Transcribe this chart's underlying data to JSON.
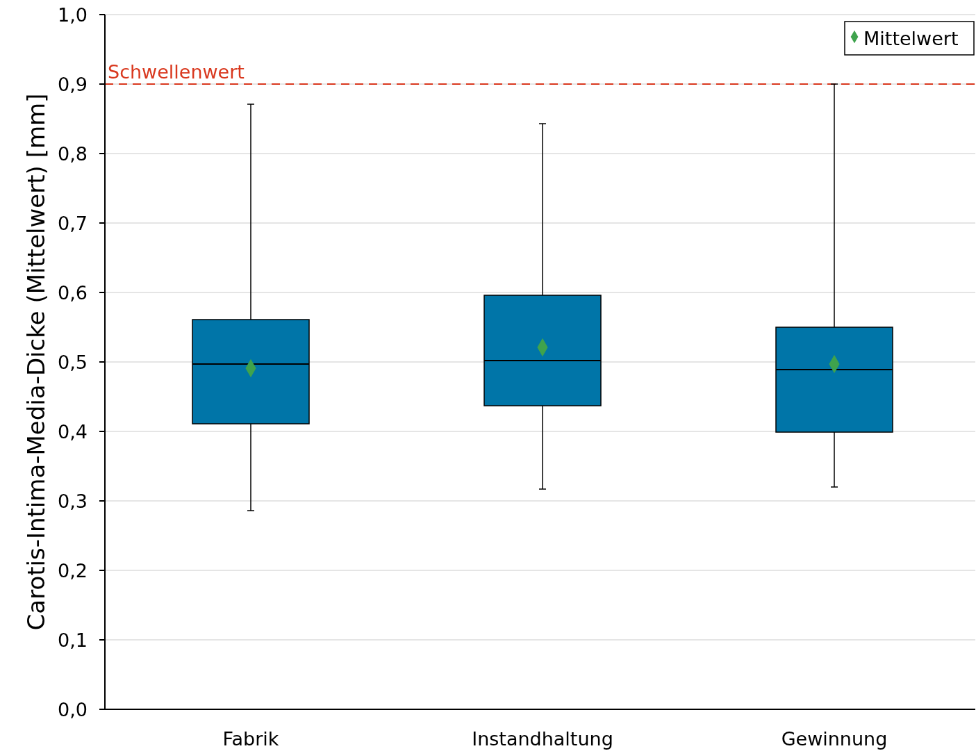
{
  "chart_data": {
    "type": "box",
    "ylabel": "Carotis-Intima-Media-Dicke (Mittelwert) [mm]",
    "categories": [
      "Fabrik",
      "Instandhaltung",
      "Gewinnung"
    ],
    "color": "#0075a8",
    "boxes": [
      {
        "low": 0.286,
        "q1": 0.411,
        "median": 0.497,
        "q3": 0.561,
        "high": 0.871
      },
      {
        "low": 0.317,
        "q1": 0.437,
        "median": 0.502,
        "q3": 0.596,
        "high": 0.843
      },
      {
        "low": 0.32,
        "q1": 0.399,
        "median": 0.489,
        "q3": 0.55,
        "high": 0.9
      }
    ],
    "series": [
      {
        "type": "scatter",
        "name": "Mittelwert",
        "color": "#3fa34d",
        "x": [
          "Fabrik",
          "Instandhaltung",
          "Gewinnung"
        ],
        "values": [
          0.491,
          0.521,
          0.497
        ],
        "marker": "diamond"
      }
    ],
    "ylim": [
      0,
      1
    ],
    "yticks": [
      {
        "value": 0,
        "label": "0,0"
      },
      {
        "value": 0.1,
        "label": "0,1"
      },
      {
        "value": 0.2,
        "label": "0,2"
      },
      {
        "value": 0.3,
        "label": "0,3"
      },
      {
        "value": 0.4,
        "label": "0,4"
      },
      {
        "value": 0.5,
        "label": "0,5"
      },
      {
        "value": 0.6,
        "label": "0,6"
      },
      {
        "value": 0.7,
        "label": "0,7"
      },
      {
        "value": 0.8,
        "label": "0,8"
      },
      {
        "value": 0.9,
        "label": "0,9"
      },
      {
        "value": 1,
        "label": "1,0"
      }
    ],
    "grid": "y",
    "legend": "top right",
    "ref_lines": [
      {
        "axis": "y",
        "value": 0.9,
        "label": "Schwellenwert",
        "color": "#d9381e",
        "line_style": "dashed"
      }
    ]
  }
}
